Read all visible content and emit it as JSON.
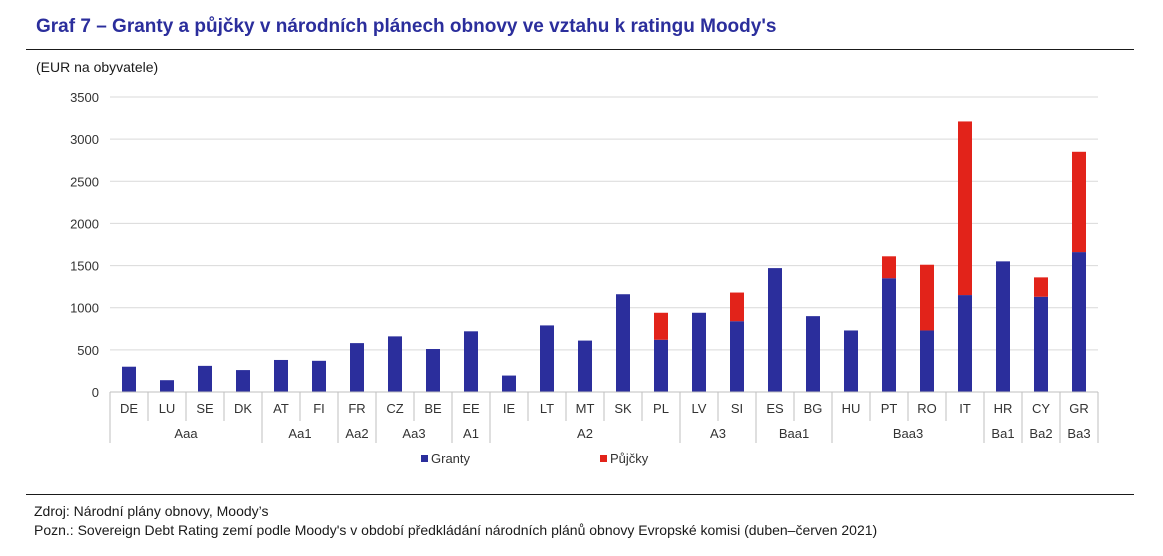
{
  "title": "Graf 7 – Granty a půjčky v národních plánech obnovy ve vztahu k ratingu Moody's",
  "unit_label": "(EUR na obyvatele)",
  "footer": {
    "source": "Zdroj: Národní plány obnovy, Moody’s",
    "note": "Pozn.: Sovereign Debt Rating zemí podle Moody's v období předkládání národních plánů obnovy Evropské komisi (duben–červen 2021)"
  },
  "chart_data": {
    "type": "bar",
    "stacked": true,
    "categories": [
      "DE",
      "LU",
      "SE",
      "DK",
      "AT",
      "FI",
      "FR",
      "CZ",
      "BE",
      "EE",
      "IE",
      "LT",
      "MT",
      "SK",
      "PL",
      "LV",
      "SI",
      "ES",
      "BG",
      "HU",
      "PT",
      "RO",
      "IT",
      "HR",
      "CY",
      "GR"
    ],
    "groups": [
      {
        "label": "Aaa",
        "count": 4
      },
      {
        "label": "Aa1",
        "count": 2
      },
      {
        "label": "Aa2",
        "count": 1
      },
      {
        "label": "Aa3",
        "count": 2
      },
      {
        "label": "A1",
        "count": 1
      },
      {
        "label": "A2",
        "count": 5
      },
      {
        "label": "A3",
        "count": 2
      },
      {
        "label": "Baa1",
        "count": 2
      },
      {
        "label": "Baa3",
        "count": 4
      },
      {
        "label": "Ba1",
        "count": 1
      },
      {
        "label": "Ba2",
        "count": 1
      },
      {
        "label": "Ba3",
        "count": 1
      }
    ],
    "series": [
      {
        "name": "Granty",
        "color": "#2b2e9c",
        "values": [
          300,
          140,
          310,
          260,
          380,
          370,
          580,
          660,
          510,
          720,
          195,
          790,
          610,
          1160,
          620,
          940,
          840,
          1470,
          900,
          730,
          1350,
          730,
          1150,
          1550,
          1130,
          1660
        ]
      },
      {
        "name": "Půjčky",
        "color": "#e2231a",
        "values": [
          0,
          0,
          0,
          0,
          0,
          0,
          0,
          0,
          0,
          0,
          0,
          0,
          0,
          0,
          320,
          0,
          340,
          0,
          0,
          0,
          260,
          780,
          2060,
          0,
          230,
          1190
        ]
      }
    ],
    "yticks": [
      0,
      500,
      1000,
      1500,
      2000,
      2500,
      3000,
      3500
    ],
    "ylim": [
      0,
      3500
    ],
    "grid": true,
    "legend_position": "bottom"
  }
}
